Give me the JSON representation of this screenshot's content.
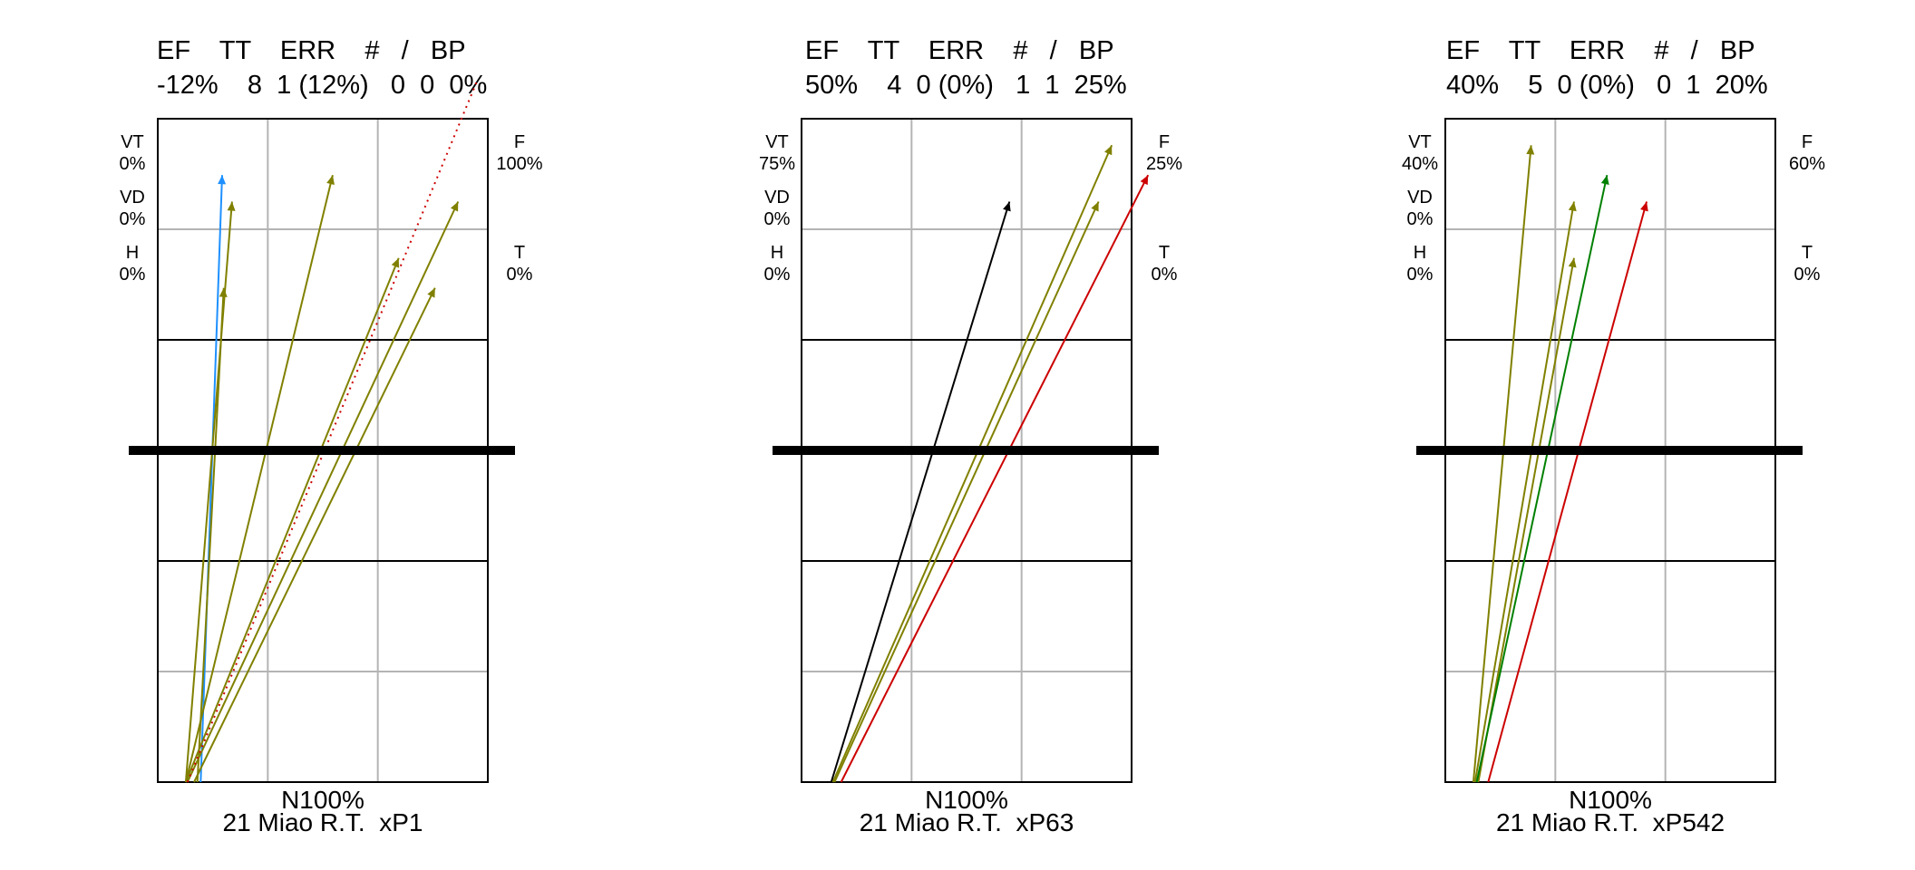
{
  "chart_data": [
    {
      "type": "line",
      "header": {
        "labels": "EF    TT    ERR    #   /   BP",
        "values": "-12%    8  1 (12%)   0  0  0%"
      },
      "left": [
        {
          "label": "VT",
          "value": "0%"
        },
        {
          "label": "VD",
          "value": "0%"
        },
        {
          "label": "H",
          "value": "0%"
        }
      ],
      "right": [
        {
          "label": "F",
          "value": "100%"
        },
        {
          "label": "T",
          "value": "0%"
        }
      ],
      "footer": {
        "line1": "N100%",
        "line2": "21 Miao R.T.  xP1"
      },
      "series": [
        {
          "color": "#1e90ff",
          "style": "solid",
          "x": [
            0.13,
            0.195
          ],
          "y": [
            0,
            0.915
          ]
        },
        {
          "color": "#808000",
          "style": "solid",
          "x": [
            0.085,
            0.225
          ],
          "y": [
            0,
            0.875
          ]
        },
        {
          "color": "#808000",
          "style": "solid",
          "x": [
            0.12,
            0.2
          ],
          "y": [
            0,
            0.745
          ]
        },
        {
          "color": "#808000",
          "style": "solid",
          "x": [
            0.085,
            0.53
          ],
          "y": [
            0,
            0.915
          ]
        },
        {
          "color": "#808000",
          "style": "solid",
          "x": [
            0.085,
            0.73
          ],
          "y": [
            0,
            0.79
          ]
        },
        {
          "color": "#808000",
          "style": "solid",
          "x": [
            0.09,
            0.91
          ],
          "y": [
            0,
            0.875
          ]
        },
        {
          "color": "#808000",
          "style": "solid",
          "x": [
            0.11,
            0.84
          ],
          "y": [
            0,
            0.745
          ]
        },
        {
          "color": "#cc0000",
          "style": "dotted",
          "x": [
            0.09,
            0.97
          ],
          "y": [
            0,
            1.06
          ]
        }
      ]
    },
    {
      "type": "line",
      "header": {
        "labels": "EF    TT    ERR    #   /   BP",
        "values": "50%    4  0 (0%)   1  1  25%"
      },
      "left": [
        {
          "label": "VT",
          "value": "75%"
        },
        {
          "label": "VD",
          "value": "0%"
        },
        {
          "label": "H",
          "value": "0%"
        }
      ],
      "right": [
        {
          "label": "F",
          "value": "25%"
        },
        {
          "label": "T",
          "value": "0%"
        }
      ],
      "footer": {
        "line1": "N100%",
        "line2": "21 Miao R.T.  xP63"
      },
      "series": [
        {
          "color": "#000000",
          "style": "solid",
          "x": [
            0.09,
            0.63
          ],
          "y": [
            0,
            0.875
          ]
        },
        {
          "color": "#808000",
          "style": "solid",
          "x": [
            0.095,
            0.94
          ],
          "y": [
            0,
            0.96
          ]
        },
        {
          "color": "#808000",
          "style": "solid",
          "x": [
            0.1,
            0.9
          ],
          "y": [
            0,
            0.875
          ]
        },
        {
          "color": "#cc0000",
          "style": "solid",
          "x": [
            0.12,
            1.05
          ],
          "y": [
            0,
            0.915
          ]
        }
      ]
    },
    {
      "type": "line",
      "header": {
        "labels": "EF    TT    ERR    #   /   BP",
        "values": "40%    5  0 (0%)   0  1  20%"
      },
      "left": [
        {
          "label": "VT",
          "value": "40%"
        },
        {
          "label": "VD",
          "value": "0%"
        },
        {
          "label": "H",
          "value": "0%"
        }
      ],
      "right": [
        {
          "label": "F",
          "value": "60%"
        },
        {
          "label": "T",
          "value": "0%"
        }
      ],
      "footer": {
        "line1": "N100%",
        "line2": "21 Miao R.T.  xP542"
      },
      "series": [
        {
          "color": "#808000",
          "style": "solid",
          "x": [
            0.085,
            0.26
          ],
          "y": [
            0,
            0.96
          ]
        },
        {
          "color": "#808000",
          "style": "solid",
          "x": [
            0.09,
            0.39
          ],
          "y": [
            0,
            0.875
          ]
        },
        {
          "color": "#808000",
          "style": "solid",
          "x": [
            0.1,
            0.39
          ],
          "y": [
            0,
            0.79
          ]
        },
        {
          "color": "#008000",
          "style": "solid",
          "x": [
            0.095,
            0.49
          ],
          "y": [
            0,
            0.915
          ]
        },
        {
          "color": "#cc0000",
          "style": "solid",
          "x": [
            0.13,
            0.61
          ],
          "y": [
            0,
            0.875
          ]
        }
      ]
    }
  ]
}
